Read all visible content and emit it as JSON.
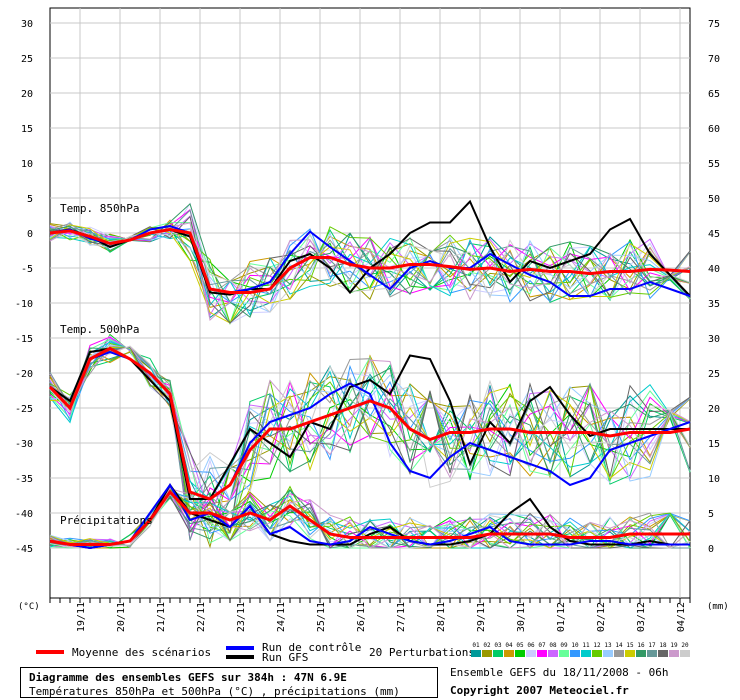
{
  "chart_data": {
    "type": "line",
    "title": "Diagramme des ensembles GEFS sur 384h : 47N 6.9E",
    "subtitle": "Températures 850hPa et 500hPa (°C) , précipitations (mm)",
    "run_info": "Ensemble GEFS du 18/11/2008 - 06h",
    "copyright": "Copyright 2007 Meteociel.fr",
    "left_axis": {
      "unit": "(°C)",
      "ticks": [
        30,
        25,
        20,
        15,
        10,
        5,
        0,
        -5,
        -10,
        -15,
        -20,
        -25,
        -30,
        -35,
        -40,
        -45
      ],
      "range": [
        -45,
        30
      ]
    },
    "right_axis": {
      "unit": "(mm)",
      "ticks": [
        75,
        70,
        65,
        60,
        55,
        50,
        45,
        40,
        35,
        30,
        25,
        20,
        15,
        10,
        5,
        0
      ],
      "range": [
        0,
        75
      ]
    },
    "x_axis": {
      "labels": [
        "19/11",
        "20/11",
        "21/11",
        "22/11",
        "23/11",
        "24/11",
        "25/11",
        "26/11",
        "27/11",
        "28/11",
        "29/11",
        "30/11",
        "01/12",
        "02/12",
        "03/12",
        "04/12"
      ],
      "range_hours": [
        0,
        384
      ],
      "step_hours": 6
    },
    "panel_labels": {
      "t850": "Temp. 850hPa",
      "t500": "Temp. 500hPa",
      "precip": "Précipitations"
    },
    "legend": {
      "mean": "Moyenne des scénarios",
      "control": "Run de contrôle",
      "gfs": "Run GFS",
      "perturbations": "20 Perturbations",
      "member_numbers": [
        "01",
        "02",
        "03",
        "04",
        "05",
        "06",
        "07",
        "08",
        "09",
        "10",
        "11",
        "12",
        "13",
        "14",
        "15",
        "16",
        "17",
        "18",
        "19",
        "20"
      ],
      "member_colors": [
        "#009999",
        "#999900",
        "#00cc66",
        "#cc9900",
        "#00cc00",
        "#ccccff",
        "#ff00ff",
        "#cc66ff",
        "#66ff99",
        "#3399ff",
        "#00cccc",
        "#66cc00",
        "#99ccff",
        "#999999",
        "#cccc00",
        "#339966",
        "#669999",
        "#666666",
        "#cc99cc",
        "#cccccc"
      ]
    },
    "colors": {
      "mean": "#ff0000",
      "control": "#0000ff",
      "gfs": "#000000"
    },
    "series": [
      {
        "name": "Moyenne des scénarios",
        "group": "t850",
        "key": "mean",
        "x": [
          0,
          12,
          24,
          36,
          48,
          60,
          72,
          84,
          96,
          108,
          120,
          132,
          144,
          156,
          168,
          180,
          192,
          204,
          216,
          228,
          240,
          252,
          264,
          276,
          288,
          300,
          312,
          324,
          336,
          348,
          360,
          372,
          384
        ],
        "values": [
          0,
          0.3,
          -0.5,
          -1.5,
          -1,
          0,
          0.5,
          0,
          -8,
          -8.5,
          -8.5,
          -8,
          -5,
          -3.5,
          -3.5,
          -4.5,
          -5,
          -5,
          -4.5,
          -4.5,
          -4.8,
          -5.2,
          -5,
          -5.5,
          -5.2,
          -5.5,
          -5.5,
          -5.8,
          -5.5,
          -5.5,
          -5.2,
          -5.3,
          -5.5
        ]
      },
      {
        "name": "Run de contrôle",
        "group": "t850",
        "key": "control",
        "x": [
          0,
          12,
          24,
          36,
          48,
          60,
          72,
          84,
          96,
          108,
          120,
          132,
          144,
          156,
          168,
          180,
          192,
          204,
          216,
          228,
          240,
          252,
          264,
          276,
          288,
          300,
          312,
          324,
          336,
          348,
          360,
          372,
          384
        ],
        "values": [
          0,
          0.5,
          -0.8,
          -1.5,
          -1,
          0.5,
          1,
          0,
          -8,
          -8.5,
          -8,
          -7,
          -3,
          0.2,
          -2,
          -4,
          -6,
          -8,
          -5,
          -4,
          -5,
          -5,
          -3,
          -4.5,
          -6,
          -7,
          -9,
          -9,
          -8,
          -8,
          -7,
          -8,
          -9
        ]
      },
      {
        "name": "Run GFS",
        "group": "t850",
        "key": "gfs",
        "x": [
          0,
          12,
          24,
          36,
          48,
          60,
          72,
          84,
          96,
          108,
          120,
          132,
          144,
          156,
          168,
          180,
          192,
          204,
          216,
          228,
          240,
          252,
          264,
          276,
          288,
          300,
          312,
          324,
          336,
          348,
          360,
          372,
          384
        ],
        "values": [
          0,
          0.5,
          -0.5,
          -2,
          -1,
          0,
          0.5,
          -0.5,
          -8.5,
          -8.8,
          -8,
          -8,
          -4,
          -3,
          -5,
          -8.5,
          -5,
          -3,
          0,
          1.5,
          1.5,
          4.5,
          -2,
          -7,
          -4,
          -5,
          -4,
          -3,
          0.5,
          2,
          -3,
          -6,
          -9
        ]
      },
      {
        "name": "Moyenne des scénarios",
        "group": "t500",
        "key": "mean",
        "x": [
          0,
          12,
          24,
          36,
          48,
          60,
          72,
          84,
          96,
          108,
          120,
          132,
          144,
          156,
          168,
          180,
          192,
          204,
          216,
          228,
          240,
          252,
          264,
          276,
          288,
          300,
          312,
          324,
          336,
          348,
          360,
          372,
          384
        ],
        "values": [
          -22,
          -25,
          -18,
          -16.5,
          -18,
          -20,
          -23,
          -37,
          -38,
          -36,
          -31,
          -28,
          -28,
          -27,
          -26,
          -25,
          -24,
          -25,
          -28,
          -29.5,
          -28.5,
          -28.5,
          -28,
          -28,
          -28.5,
          -28.5,
          -28.5,
          -28.5,
          -29,
          -28.5,
          -28.5,
          -28.5,
          -28
        ]
      },
      {
        "name": "Run de contrôle",
        "group": "t500",
        "key": "control",
        "x": [
          0,
          12,
          24,
          36,
          48,
          60,
          72,
          84,
          96,
          108,
          120,
          132,
          144,
          156,
          168,
          180,
          192,
          204,
          216,
          228,
          240,
          252,
          264,
          276,
          288,
          300,
          312,
          324,
          336,
          348,
          360,
          372,
          384
        ],
        "values": [
          -22,
          -25,
          -18,
          -17,
          -18,
          -20,
          -23,
          -37,
          -38,
          -36,
          -30,
          -27,
          -26,
          -25,
          -23,
          -21.5,
          -23,
          -30,
          -34,
          -35,
          -32,
          -30,
          -31,
          -32,
          -33,
          -34,
          -36,
          -35,
          -31,
          -30,
          -29,
          -28,
          -27
        ]
      },
      {
        "name": "Run GFS",
        "group": "t500",
        "key": "gfs",
        "x": [
          0,
          12,
          24,
          36,
          48,
          60,
          72,
          84,
          96,
          108,
          120,
          132,
          144,
          156,
          168,
          180,
          192,
          204,
          216,
          228,
          240,
          252,
          264,
          276,
          288,
          300,
          312,
          324,
          336,
          348,
          360,
          372,
          384
        ],
        "values": [
          -22,
          -24,
          -17,
          -16.5,
          -18,
          -21,
          -24,
          -38,
          -38,
          -33,
          -28,
          -30,
          -32,
          -27,
          -28,
          -22,
          -21,
          -23,
          -17.5,
          -18,
          -24,
          -33,
          -27,
          -30,
          -24,
          -22,
          -26,
          -29,
          -28,
          -28,
          -28,
          -28,
          -28
        ]
      },
      {
        "name": "Moyenne des scénarios",
        "group": "precip",
        "unit": "mm",
        "key": "mean",
        "x": [
          0,
          12,
          24,
          36,
          48,
          60,
          72,
          84,
          96,
          108,
          120,
          132,
          144,
          156,
          168,
          180,
          192,
          204,
          216,
          228,
          240,
          252,
          264,
          276,
          288,
          300,
          312,
          324,
          336,
          348,
          360,
          372,
          384
        ],
        "values": [
          1,
          0.5,
          0.5,
          0.5,
          1,
          4,
          8,
          5,
          5,
          4,
          5,
          4,
          6,
          4,
          2,
          1.5,
          1.5,
          1.5,
          1.5,
          1.5,
          1.5,
          1.5,
          2,
          2,
          2,
          2,
          1.5,
          1.5,
          1.5,
          2,
          2,
          2,
          2
        ]
      },
      {
        "name": "Run de contrôle",
        "group": "precip",
        "unit": "mm",
        "key": "control",
        "x": [
          0,
          12,
          24,
          36,
          48,
          60,
          72,
          84,
          96,
          108,
          120,
          132,
          144,
          156,
          168,
          180,
          192,
          204,
          216,
          228,
          240,
          252,
          264,
          276,
          288,
          300,
          312,
          324,
          336,
          348,
          360,
          372,
          384
        ],
        "values": [
          1,
          0.5,
          0,
          0.5,
          1,
          5,
          9,
          4,
          5,
          3,
          6,
          2,
          3,
          1,
          0.5,
          1,
          3,
          2,
          1,
          0.5,
          1,
          2,
          3,
          1,
          0.5,
          0.5,
          0.5,
          1,
          1,
          0.5,
          0.5,
          0.5,
          0.5
        ]
      },
      {
        "name": "Run GFS",
        "group": "precip",
        "unit": "mm",
        "key": "gfs",
        "x": [
          0,
          12,
          24,
          36,
          48,
          60,
          72,
          84,
          96,
          108,
          120,
          132,
          144,
          156,
          168,
          180,
          192,
          204,
          216,
          228,
          240,
          252,
          264,
          276,
          288,
          300,
          312,
          324,
          336,
          348,
          360,
          372,
          384
        ],
        "values": [
          1,
          0.5,
          0,
          0.5,
          1,
          4,
          9,
          5,
          4,
          3,
          6,
          2,
          1,
          0.5,
          0.5,
          0.5,
          2,
          3,
          1,
          0.5,
          0.5,
          1,
          2,
          5,
          7,
          3,
          1,
          0.5,
          0.5,
          0.5,
          1,
          0.5,
          0.5
        ]
      }
    ],
    "grid": true
  }
}
